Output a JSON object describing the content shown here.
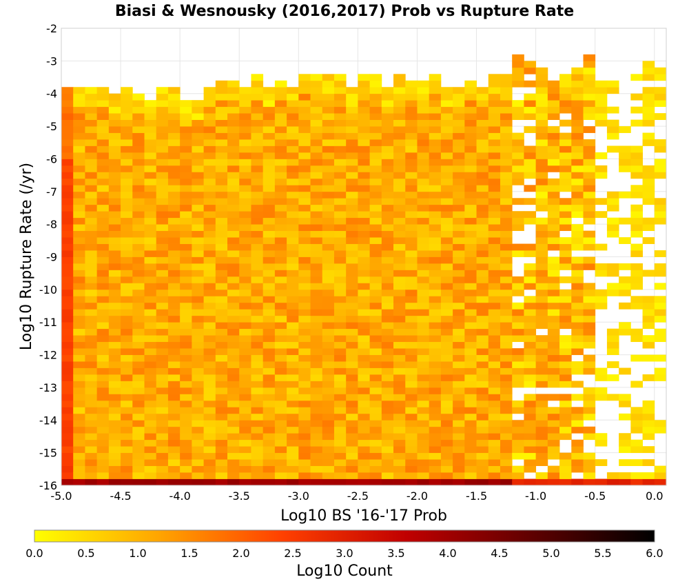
{
  "chart_data": {
    "type": "heatmap",
    "title": "Biasi & Wesnousky (2016,2017) Prob vs Rupture Rate",
    "xlabel": "Log10 BS '16-'17 Prob",
    "ylabel": "Log10 Rupture Rate (/yr)",
    "xlim": [
      -5.0,
      0.1
    ],
    "ylim": [
      -16,
      -2
    ],
    "x_ticks": [
      "-5.0",
      "-4.5",
      "-4.0",
      "-3.5",
      "-3.0",
      "-2.5",
      "-2.0",
      "-1.5",
      "-1.0",
      "-0.5",
      "0.0"
    ],
    "x_tick_values": [
      -5.0,
      -4.5,
      -4.0,
      -3.5,
      -3.0,
      -2.5,
      -2.0,
      -1.5,
      -1.0,
      -0.5,
      0.0
    ],
    "y_ticks": [
      "-2",
      "-3",
      "-4",
      "-5",
      "-6",
      "-7",
      "-8",
      "-9",
      "-10",
      "-11",
      "-12",
      "-13",
      "-14",
      "-15",
      "-16"
    ],
    "y_tick_values": [
      -2,
      -3,
      -4,
      -5,
      -6,
      -7,
      -8,
      -9,
      -10,
      -11,
      -12,
      -13,
      -14,
      -15,
      -16
    ],
    "bin_width_x": 0.1,
    "bin_height_y": 0.2,
    "grid": true,
    "colorbar": {
      "label": "Log10 Count",
      "range": [
        0.0,
        6.0
      ],
      "ticks": [
        "0.0",
        "0.5",
        "1.0",
        "1.5",
        "2.0",
        "2.5",
        "3.0",
        "3.5",
        "4.0",
        "4.5",
        "5.0",
        "5.5",
        "6.0"
      ],
      "tick_values": [
        0.0,
        0.5,
        1.0,
        1.5,
        2.0,
        2.5,
        3.0,
        3.5,
        4.0,
        4.5,
        5.0,
        5.5,
        6.0
      ],
      "colors": [
        "#ffff00",
        "#ffa500",
        "#ff4000",
        "#c00000",
        "#600000",
        "#000000"
      ]
    },
    "data_summary": {
      "bulk_log10_count_range": [
        0.5,
        1.7
      ],
      "bottom_row_y": -16,
      "bottom_row_log10_count": 4.0,
      "left_column_x": -5.0,
      "left_column_log10_count": 2.5,
      "sparse_region_x": [
        -1.2,
        0.1
      ]
    }
  }
}
